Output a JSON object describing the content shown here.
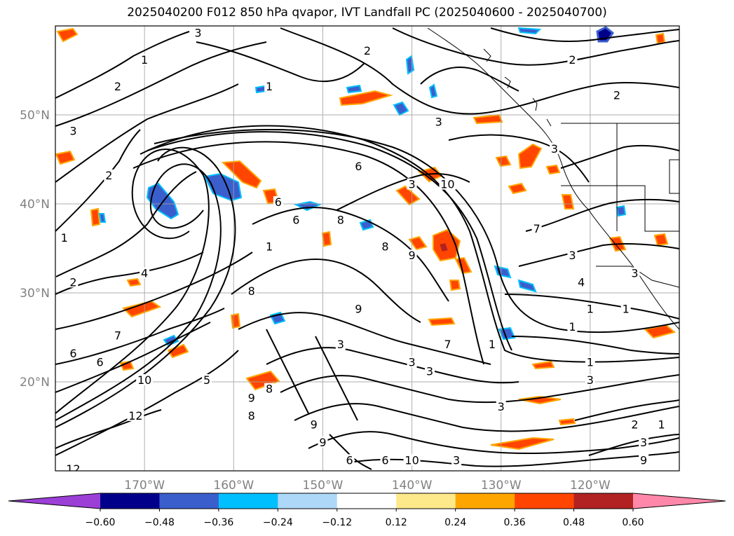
{
  "title": "2025040200 F012 850 hPa qvapor, IVT Landfall PC (2025040600 - 2025040700)",
  "map": {
    "lon_range": [
      -180,
      -110
    ],
    "lat_range": [
      10,
      60
    ],
    "lon_ticks": [
      {
        "value": -170,
        "label": "170°W"
      },
      {
        "value": -160,
        "label": "160°W"
      },
      {
        "value": -150,
        "label": "150°W"
      },
      {
        "value": -140,
        "label": "140°W"
      },
      {
        "value": -130,
        "label": "130°W"
      },
      {
        "value": -120,
        "label": "120°W"
      }
    ],
    "lat_ticks": [
      {
        "value": 20,
        "label": "20°N"
      },
      {
        "value": 30,
        "label": "30°N"
      },
      {
        "value": 40,
        "label": "40°N"
      },
      {
        "value": 50,
        "label": "50°N"
      }
    ],
    "grid": true,
    "contour_labels": [
      {
        "text": "3",
        "lon": -164,
        "lat": 59
      },
      {
        "text": "1",
        "lon": -170,
        "lat": 56
      },
      {
        "text": "2",
        "lon": -173,
        "lat": 53
      },
      {
        "text": "1",
        "lon": -156,
        "lat": 53
      },
      {
        "text": "2",
        "lon": -145,
        "lat": 57
      },
      {
        "text": "2",
        "lon": -122,
        "lat": 56
      },
      {
        "text": "2",
        "lon": -117,
        "lat": 52
      },
      {
        "text": "3",
        "lon": -178,
        "lat": 48
      },
      {
        "text": "3",
        "lon": -137,
        "lat": 49
      },
      {
        "text": "3",
        "lon": -124,
        "lat": 46
      },
      {
        "text": "2",
        "lon": -174,
        "lat": 43
      },
      {
        "text": "6",
        "lon": -146,
        "lat": 44
      },
      {
        "text": "3",
        "lon": -140,
        "lat": 42
      },
      {
        "text": "10",
        "lon": -136,
        "lat": 42
      },
      {
        "text": "6",
        "lon": -155,
        "lat": 40
      },
      {
        "text": "6",
        "lon": -153,
        "lat": 38
      },
      {
        "text": "8",
        "lon": -148,
        "lat": 38
      },
      {
        "text": "8",
        "lon": -143,
        "lat": 35
      },
      {
        "text": "9",
        "lon": -140,
        "lat": 34
      },
      {
        "text": "1",
        "lon": -179,
        "lat": 36
      },
      {
        "text": "7",
        "lon": -126,
        "lat": 37
      },
      {
        "text": "3",
        "lon": -122,
        "lat": 34
      },
      {
        "text": "4",
        "lon": -121,
        "lat": 31
      },
      {
        "text": "3",
        "lon": -115,
        "lat": 32
      },
      {
        "text": "2",
        "lon": -178,
        "lat": 31
      },
      {
        "text": "4",
        "lon": -170,
        "lat": 32
      },
      {
        "text": "1",
        "lon": -156,
        "lat": 35
      },
      {
        "text": "8",
        "lon": -158,
        "lat": 30
      },
      {
        "text": "9",
        "lon": -146,
        "lat": 28
      },
      {
        "text": "1",
        "lon": -120,
        "lat": 28
      },
      {
        "text": "1",
        "lon": -116,
        "lat": 28
      },
      {
        "text": "1",
        "lon": -122,
        "lat": 26
      },
      {
        "text": "7",
        "lon": -173,
        "lat": 25
      },
      {
        "text": "6",
        "lon": -178,
        "lat": 23
      },
      {
        "text": "6",
        "lon": -175,
        "lat": 22
      },
      {
        "text": "3",
        "lon": -148,
        "lat": 24
      },
      {
        "text": "3",
        "lon": -140,
        "lat": 22
      },
      {
        "text": "3",
        "lon": -138,
        "lat": 21
      },
      {
        "text": "7",
        "lon": -136,
        "lat": 24
      },
      {
        "text": "1",
        "lon": -120,
        "lat": 22
      },
      {
        "text": "3",
        "lon": -120,
        "lat": 20
      },
      {
        "text": "1",
        "lon": -131,
        "lat": 24
      },
      {
        "text": "10",
        "lon": -170,
        "lat": 20
      },
      {
        "text": "5",
        "lon": -163,
        "lat": 20
      },
      {
        "text": "8",
        "lon": -156,
        "lat": 19
      },
      {
        "text": "9",
        "lon": -158,
        "lat": 18
      },
      {
        "text": "8",
        "lon": -158,
        "lat": 16
      },
      {
        "text": "12",
        "lon": -171,
        "lat": 16
      },
      {
        "text": "3",
        "lon": -130,
        "lat": 17
      },
      {
        "text": "9",
        "lon": -151,
        "lat": 15
      },
      {
        "text": "9",
        "lon": -150,
        "lat": 13
      },
      {
        "text": "6",
        "lon": -147,
        "lat": 11
      },
      {
        "text": "10",
        "lon": -140,
        "lat": 11
      },
      {
        "text": "6",
        "lon": -143,
        "lat": 11
      },
      {
        "text": "3",
        "lon": -135,
        "lat": 11
      },
      {
        "text": "2",
        "lon": -115,
        "lat": 15
      },
      {
        "text": "1",
        "lon": -112,
        "lat": 15
      },
      {
        "text": "3",
        "lon": -114,
        "lat": 13
      },
      {
        "text": "9",
        "lon": -114,
        "lat": 11
      },
      {
        "text": "12",
        "lon": -178,
        "lat": 10
      }
    ]
  },
  "colorbar": {
    "ticks": [
      "−0.60",
      "−0.48",
      "−0.36",
      "−0.24",
      "−0.12",
      "0.12",
      "0.24",
      "0.36",
      "0.48",
      "0.60"
    ],
    "colors": [
      "#9b3fd6",
      "#00008b",
      "#3a5fcd",
      "#00bfff",
      "#add8f7",
      "#ffffff",
      "#fde98a",
      "#ffa500",
      "#ff4500",
      "#b22222",
      "#ff88aa"
    ]
  }
}
